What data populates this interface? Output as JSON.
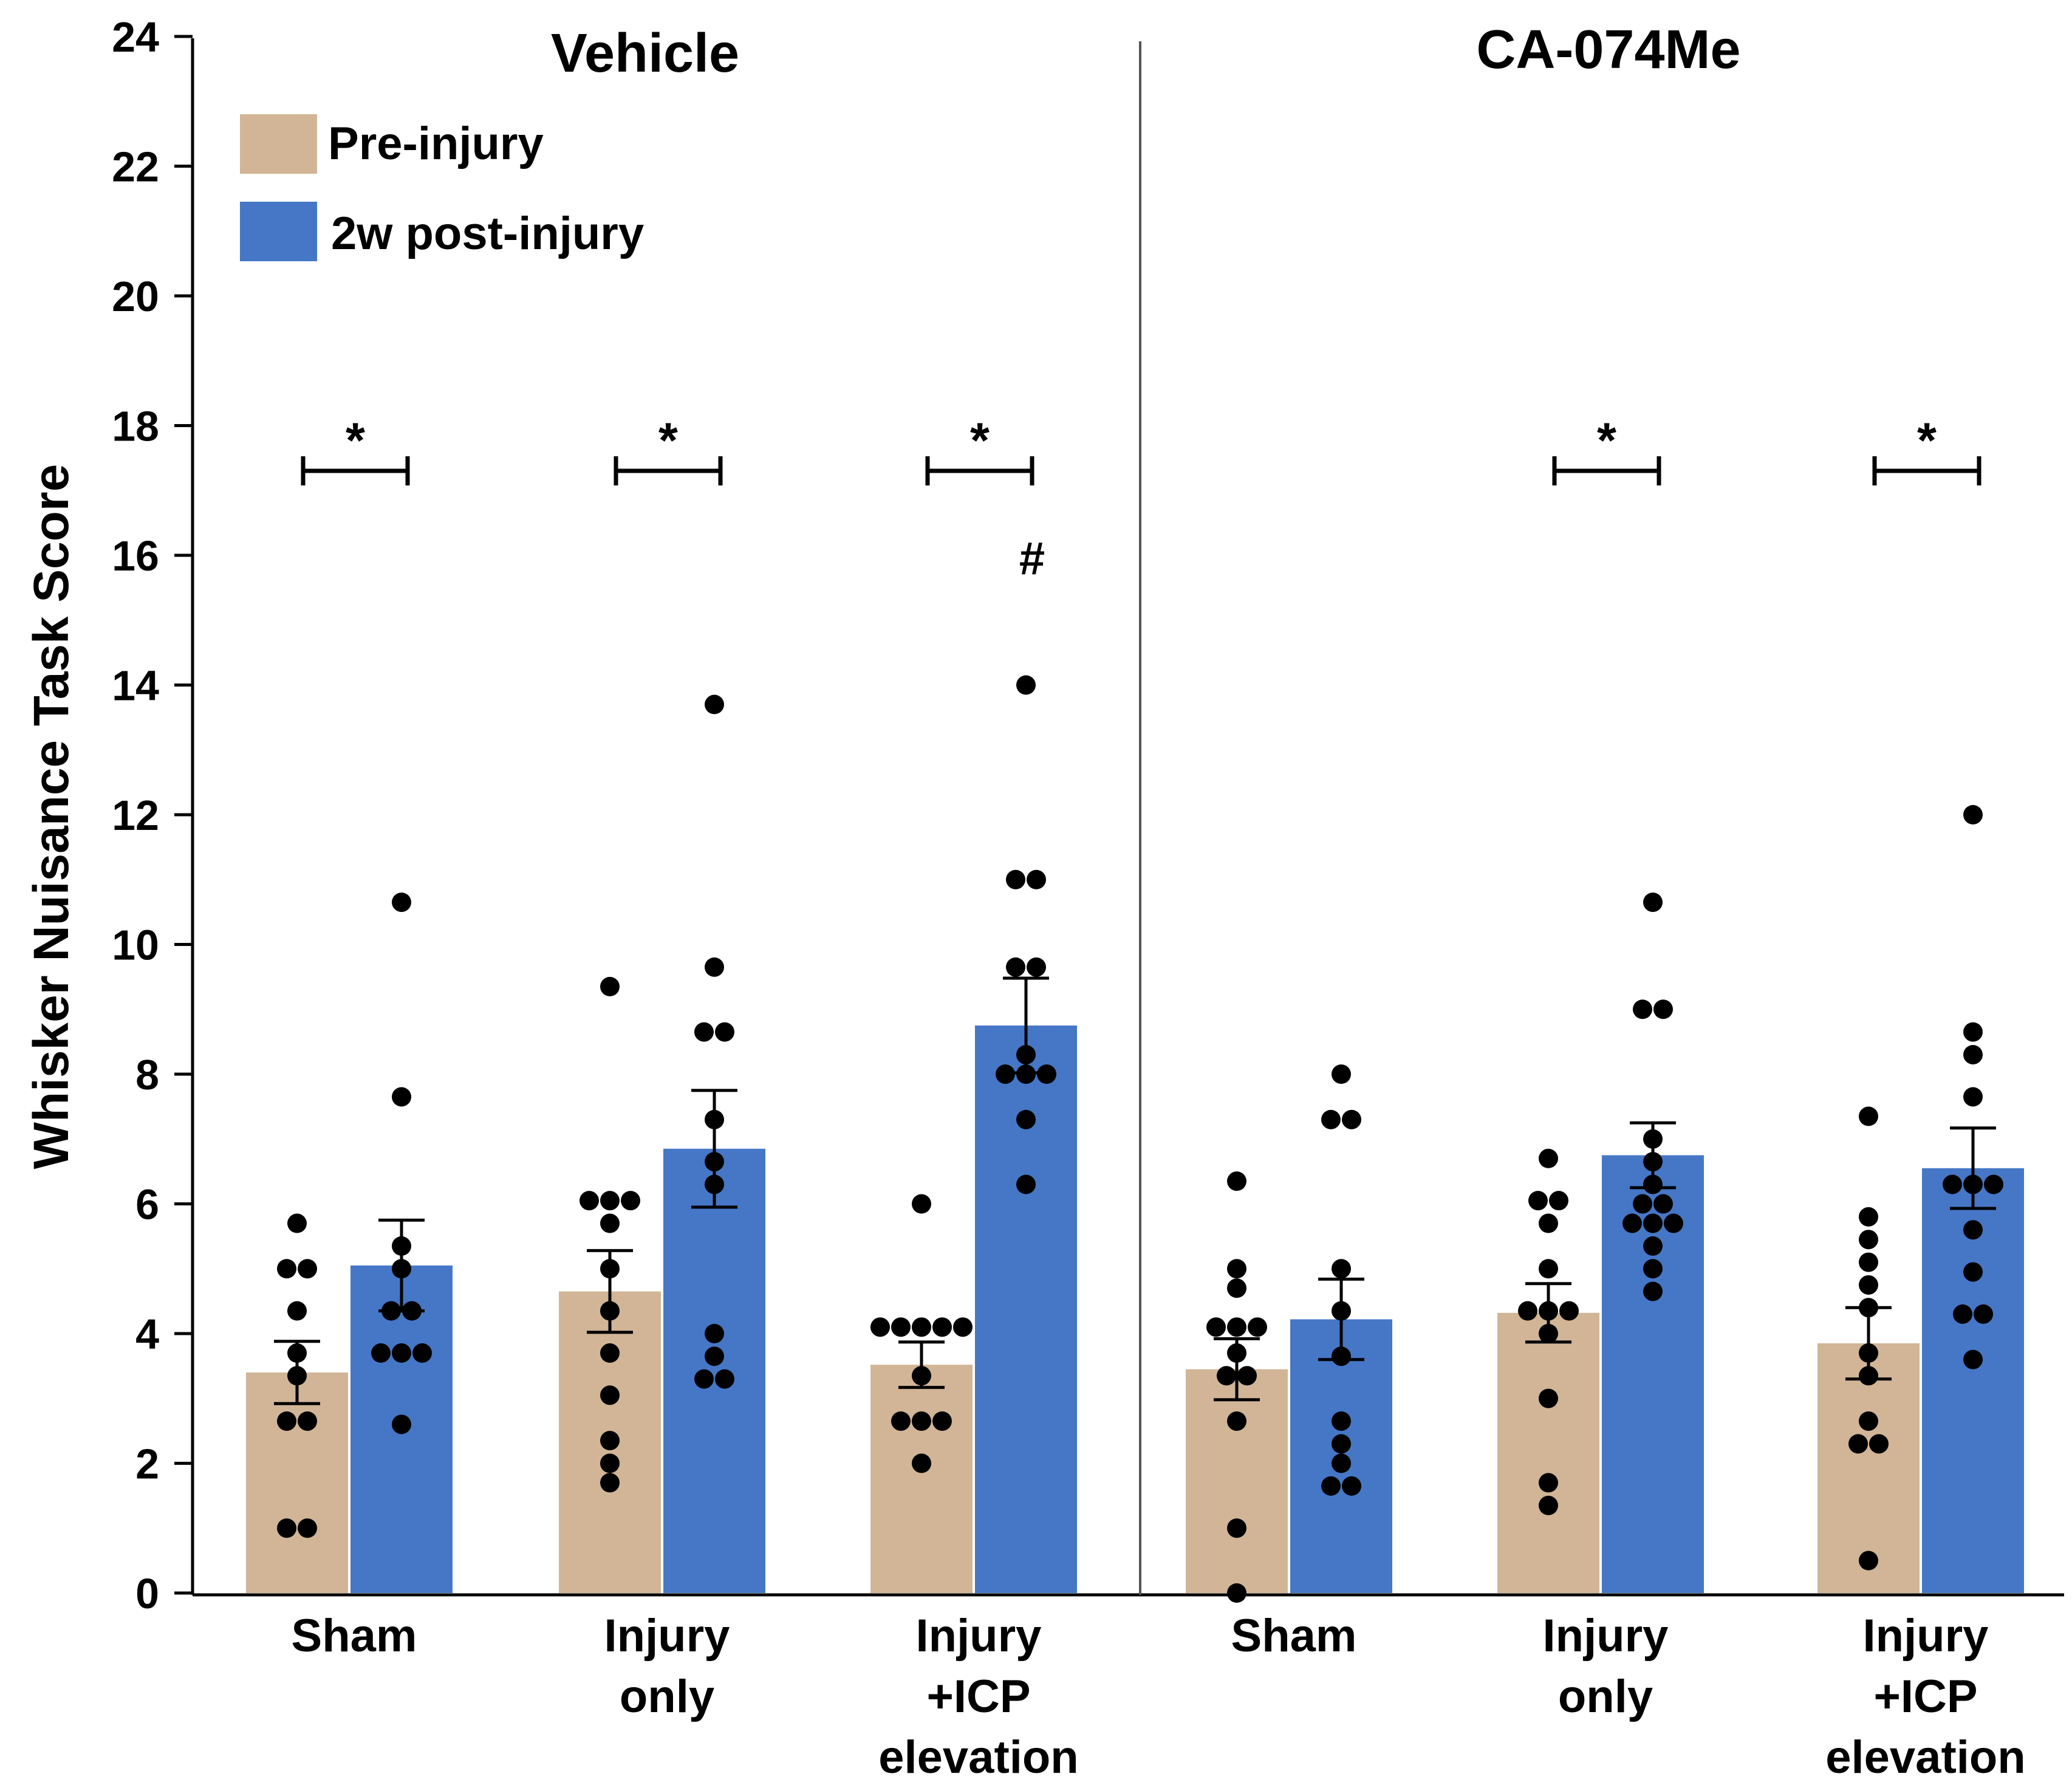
{
  "chart_data": {
    "type": "bar",
    "ylabel": "Whisker Nuisance Task Score",
    "ylim": [
      0,
      24
    ],
    "yticks": [
      0,
      2,
      4,
      6,
      8,
      10,
      12,
      14,
      16,
      18,
      20,
      22,
      24
    ],
    "grid": false,
    "legend_position": "top-left",
    "colors": {
      "pre": "#D1B596",
      "post": "#4577C6"
    },
    "series": [
      {
        "key": "pre",
        "name": "Pre-injury"
      },
      {
        "key": "post",
        "name": "2w post-injury"
      }
    ],
    "panels": [
      {
        "title": "Vehicle",
        "groups": [
          {
            "label_lines": [
              "Sham"
            ],
            "pre": {
              "mean": 3.4,
              "sem": 0.48,
              "points": [
                5.7,
                5.0,
                5.0,
                4.35,
                3.7,
                3.35,
                2.65,
                2.65,
                1.0,
                1.0
              ]
            },
            "post": {
              "mean": 5.05,
              "sem": 0.7,
              "points": [
                10.65,
                7.65,
                5.35,
                5.0,
                4.35,
                4.35,
                3.7,
                3.7,
                3.7,
                2.6
              ]
            },
            "sig": "*",
            "hash": ""
          },
          {
            "label_lines": [
              "Injury",
              "only"
            ],
            "pre": {
              "mean": 4.65,
              "sem": 0.63,
              "points": [
                9.35,
                6.05,
                6.05,
                6.05,
                5.7,
                5.0,
                4.35,
                3.7,
                3.05,
                2.35,
                2.0,
                1.7
              ]
            },
            "post": {
              "mean": 6.85,
              "sem": 0.9,
              "points": [
                13.7,
                9.65,
                8.65,
                8.65,
                7.3,
                6.65,
                6.3,
                4.0,
                3.65,
                3.3,
                3.3
              ]
            },
            "sig": "*",
            "hash": ""
          },
          {
            "label_lines": [
              "Injury",
              "+ICP",
              "elevation"
            ],
            "pre": {
              "mean": 3.52,
              "sem": 0.35,
              "points": [
                6.0,
                4.1,
                4.1,
                4.1,
                4.1,
                4.1,
                3.35,
                2.65,
                2.65,
                2.65,
                2.0
              ]
            },
            "post": {
              "mean": 8.75,
              "sem": 0.73,
              "points": [
                14.0,
                11.0,
                11.0,
                9.65,
                9.65,
                8.3,
                8.0,
                8.0,
                8.0,
                7.3,
                6.3
              ]
            },
            "sig": "*",
            "hash": "#"
          }
        ]
      },
      {
        "title": "CA-074Me",
        "groups": [
          {
            "label_lines": [
              "Sham"
            ],
            "pre": {
              "mean": 3.45,
              "sem": 0.47,
              "points": [
                6.35,
                5.0,
                4.7,
                4.1,
                4.1,
                4.1,
                3.7,
                3.35,
                3.35,
                2.65,
                1.0,
                0.0
              ]
            },
            "post": {
              "mean": 4.22,
              "sem": 0.62,
              "points": [
                8.0,
                7.3,
                7.3,
                5.0,
                4.35,
                3.65,
                2.65,
                2.3,
                2.0,
                1.65,
                1.65
              ]
            },
            "sig": "",
            "hash": ""
          },
          {
            "label_lines": [
              "Injury",
              "only"
            ],
            "pre": {
              "mean": 4.32,
              "sem": 0.45,
              "points": [
                6.7,
                6.05,
                6.05,
                5.7,
                5.0,
                4.35,
                4.35,
                4.35,
                4.0,
                3.0,
                1.7,
                1.35
              ]
            },
            "post": {
              "mean": 6.75,
              "sem": 0.5,
              "points": [
                10.65,
                9.0,
                9.0,
                7.0,
                6.65,
                6.3,
                6.0,
                6.0,
                5.7,
                5.7,
                5.7,
                5.35,
                5.0,
                4.65
              ]
            },
            "sig": "*",
            "hash": ""
          },
          {
            "label_lines": [
              "Injury",
              "+ICP",
              "elevation"
            ],
            "pre": {
              "mean": 3.85,
              "sem": 0.55,
              "points": [
                7.35,
                5.8,
                5.45,
                5.1,
                4.75,
                4.4,
                3.7,
                3.35,
                2.65,
                2.3,
                2.3,
                0.5
              ]
            },
            "post": {
              "mean": 6.55,
              "sem": 0.62,
              "points": [
                12.0,
                8.65,
                8.3,
                7.65,
                6.3,
                6.3,
                6.3,
                5.6,
                4.95,
                4.3,
                4.3,
                3.6
              ]
            },
            "sig": "*",
            "hash": ""
          }
        ]
      }
    ]
  }
}
